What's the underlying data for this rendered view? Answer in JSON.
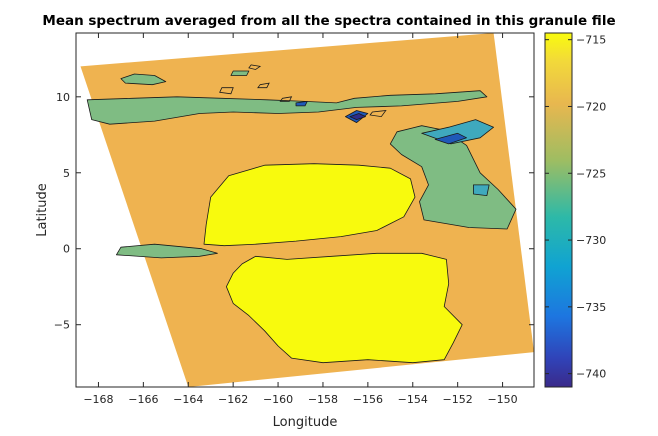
{
  "chart_data": {
    "type": "contourf",
    "title": "Mean spectrum averaged from all the spectra contained in this granule file",
    "xlabel": "Longitude",
    "ylabel": "Latitude",
    "xlim": [
      -169,
      -148.6
    ],
    "ylim": [
      -9.1,
      14.2
    ],
    "xticks": [
      -168,
      -166,
      -164,
      -162,
      -160,
      -158,
      -156,
      -154,
      -152,
      -150
    ],
    "yticks": [
      10,
      5,
      0,
      -5
    ],
    "colorbar": {
      "lim": [
        -741,
        -714.5
      ],
      "ticks": [
        -715,
        -720,
        -725,
        -730,
        -735,
        -740
      ]
    },
    "colors": {
      "background_level": "#efb350",
      "high_level": "#f8fa0d",
      "mid_level": "#7fbc83",
      "low_level": "#3fa9bd",
      "deep_level": "#1f59b9",
      "darkest_level": "#2c2c8a"
    },
    "swath": [
      [
        -168.8,
        12.0
      ],
      [
        -150.4,
        14.2
      ],
      [
        -148.6,
        -6.8
      ],
      [
        -164.0,
        -9.1
      ]
    ],
    "regions": [
      {
        "name": "warm-region-north",
        "level": "high",
        "points": [
          [
            -163.2,
            1.6
          ],
          [
            -163.0,
            3.4
          ],
          [
            -162.2,
            4.8
          ],
          [
            -160.6,
            5.5
          ],
          [
            -158.4,
            5.6
          ],
          [
            -156.4,
            5.5
          ],
          [
            -155.0,
            5.3
          ],
          [
            -154.1,
            4.6
          ],
          [
            -153.9,
            3.4
          ],
          [
            -154.4,
            2.1
          ],
          [
            -155.6,
            1.2
          ],
          [
            -157.2,
            0.8
          ],
          [
            -159.2,
            0.5
          ],
          [
            -161.0,
            0.3
          ],
          [
            -162.4,
            0.2
          ],
          [
            -163.3,
            0.3
          ]
        ]
      },
      {
        "name": "warm-region-south",
        "level": "high",
        "points": [
          [
            -161.6,
            -1.0
          ],
          [
            -161.0,
            -0.5
          ],
          [
            -159.6,
            -0.7
          ],
          [
            -157.6,
            -0.5
          ],
          [
            -155.6,
            -0.3
          ],
          [
            -153.6,
            -0.3
          ],
          [
            -152.5,
            -0.7
          ],
          [
            -152.4,
            -2.3
          ],
          [
            -152.6,
            -3.8
          ],
          [
            -151.8,
            -5.0
          ],
          [
            -152.2,
            -6.2
          ],
          [
            -152.6,
            -7.3
          ],
          [
            -154.0,
            -7.5
          ],
          [
            -156.0,
            -7.3
          ],
          [
            -158.0,
            -7.5
          ],
          [
            -159.4,
            -7.2
          ],
          [
            -160.0,
            -6.4
          ],
          [
            -160.6,
            -5.4
          ],
          [
            -161.3,
            -4.4
          ],
          [
            -162.0,
            -3.6
          ],
          [
            -162.3,
            -2.5
          ],
          [
            -162.0,
            -1.6
          ]
        ]
      },
      {
        "name": "cool-band-north",
        "level": "mid",
        "points": [
          [
            -168.5,
            9.8
          ],
          [
            -166.5,
            9.9
          ],
          [
            -164.5,
            10.0
          ],
          [
            -162.5,
            9.9
          ],
          [
            -160.5,
            9.8
          ],
          [
            -158.8,
            9.7
          ],
          [
            -157.4,
            9.6
          ],
          [
            -156.6,
            9.9
          ],
          [
            -155.0,
            10.1
          ],
          [
            -153.0,
            10.2
          ],
          [
            -151.0,
            10.4
          ],
          [
            -150.7,
            10.0
          ],
          [
            -152.0,
            9.7
          ],
          [
            -154.5,
            9.4
          ],
          [
            -156.5,
            9.3
          ],
          [
            -158.2,
            9.0
          ],
          [
            -160.0,
            8.9
          ],
          [
            -162.0,
            9.0
          ],
          [
            -163.5,
            8.9
          ],
          [
            -165.5,
            8.4
          ],
          [
            -167.5,
            8.2
          ],
          [
            -168.3,
            8.5
          ]
        ]
      },
      {
        "name": "cool-band-equator",
        "level": "mid",
        "points": [
          [
            -167.2,
            -0.4
          ],
          [
            -165.2,
            -0.6
          ],
          [
            -163.5,
            -0.5
          ],
          [
            -162.7,
            -0.3
          ],
          [
            -163.4,
            0.0
          ],
          [
            -165.5,
            0.3
          ],
          [
            -167.0,
            0.1
          ]
        ]
      },
      {
        "name": "cool-patch-east",
        "level": "mid",
        "points": [
          [
            -153.5,
            1.9
          ],
          [
            -151.5,
            1.4
          ],
          [
            -149.8,
            1.3
          ],
          [
            -149.4,
            2.6
          ],
          [
            -150.2,
            3.9
          ],
          [
            -151.0,
            5.0
          ],
          [
            -151.6,
            6.8
          ],
          [
            -152.6,
            7.8
          ],
          [
            -153.6,
            8.1
          ],
          [
            -154.7,
            7.7
          ],
          [
            -155.0,
            6.9
          ],
          [
            -154.5,
            6.2
          ],
          [
            -153.6,
            5.4
          ],
          [
            -153.3,
            4.2
          ],
          [
            -153.7,
            3.1
          ]
        ]
      },
      {
        "name": "cool-bump-northwest",
        "level": "mid",
        "points": [
          [
            -166.4,
            11.5
          ],
          [
            -165.5,
            11.4
          ],
          [
            -165.0,
            11.0
          ],
          [
            -165.6,
            10.8
          ],
          [
            -166.8,
            10.9
          ],
          [
            -167.0,
            11.2
          ]
        ]
      },
      {
        "name": "cool-speck",
        "level": "mid",
        "points": [
          [
            -162.0,
            11.7
          ],
          [
            -161.3,
            11.7
          ],
          [
            -161.4,
            11.4
          ],
          [
            -162.1,
            11.4
          ]
        ]
      },
      {
        "name": "low-patch-east",
        "level": "low",
        "points": [
          [
            -153.6,
            7.6
          ],
          [
            -152.4,
            8.0
          ],
          [
            -151.2,
            8.5
          ],
          [
            -150.4,
            8.0
          ],
          [
            -151.0,
            7.3
          ],
          [
            -152.3,
            6.9
          ]
        ]
      },
      {
        "name": "low-speck-east",
        "level": "low",
        "points": [
          [
            -151.3,
            4.2
          ],
          [
            -150.6,
            4.2
          ],
          [
            -150.7,
            3.5
          ],
          [
            -151.3,
            3.6
          ]
        ]
      },
      {
        "name": "deep-patch-east",
        "level": "deep",
        "points": [
          [
            -153.0,
            7.2
          ],
          [
            -152.0,
            7.6
          ],
          [
            -151.6,
            7.3
          ],
          [
            -152.4,
            6.9
          ]
        ]
      },
      {
        "name": "deep-patch-center",
        "level": "deep",
        "points": [
          [
            -157.0,
            8.7
          ],
          [
            -156.5,
            9.1
          ],
          [
            -156.0,
            8.9
          ],
          [
            -156.5,
            8.3
          ]
        ]
      },
      {
        "name": "darkest-patch-center",
        "level": "darkest",
        "points": [
          [
            -156.8,
            8.7
          ],
          [
            -156.4,
            8.9
          ],
          [
            -156.1,
            8.7
          ],
          [
            -156.5,
            8.5
          ]
        ]
      },
      {
        "name": "deep-speck-west",
        "level": "deep",
        "points": [
          [
            -159.2,
            9.6
          ],
          [
            -158.7,
            9.7
          ],
          [
            -158.8,
            9.4
          ],
          [
            -159.2,
            9.4
          ]
        ]
      }
    ],
    "rings": [
      {
        "name": "contour-ring-north",
        "points": [
          [
            -161.2,
            12.1
          ],
          [
            -160.8,
            12.0
          ],
          [
            -161.0,
            11.8
          ],
          [
            -161.3,
            11.9
          ]
        ]
      },
      {
        "name": "contour-ring-west",
        "points": [
          [
            -162.5,
            10.6
          ],
          [
            -162.0,
            10.6
          ],
          [
            -162.1,
            10.2
          ],
          [
            -162.6,
            10.3
          ]
        ]
      },
      {
        "name": "contour-ring-mid",
        "points": [
          [
            -160.8,
            10.8
          ],
          [
            -160.4,
            10.9
          ],
          [
            -160.5,
            10.6
          ],
          [
            -160.9,
            10.6
          ]
        ]
      },
      {
        "name": "contour-ring-center",
        "points": [
          [
            -159.8,
            9.9
          ],
          [
            -159.4,
            10.0
          ],
          [
            -159.5,
            9.7
          ],
          [
            -159.9,
            9.7
          ]
        ]
      },
      {
        "name": "contour-ring-east",
        "points": [
          [
            -155.8,
            9.0
          ],
          [
            -155.2,
            9.1
          ],
          [
            -155.4,
            8.7
          ],
          [
            -155.9,
            8.8
          ]
        ]
      }
    ]
  }
}
